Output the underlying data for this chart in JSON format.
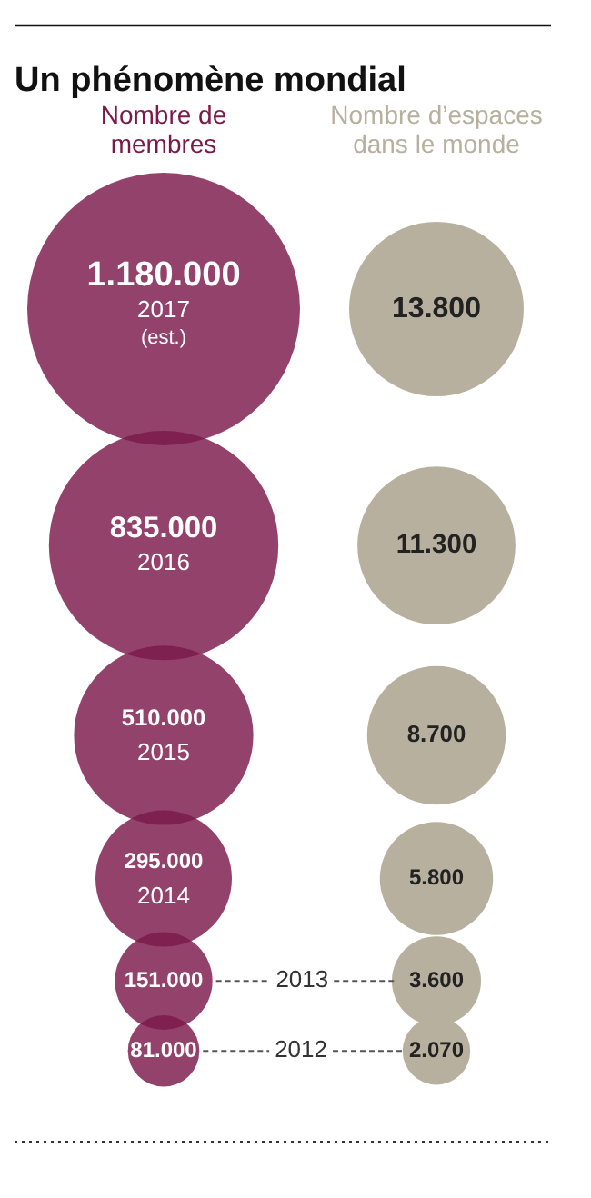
{
  "chart_data": {
    "type": "other",
    "title": "Un phénomène mondial",
    "categories": [
      "2017 (est.)",
      "2016",
      "2015",
      "2014",
      "2013",
      "2012"
    ],
    "series": [
      {
        "name": "Nombre de membres",
        "color": "#7b1a4a",
        "values": [
          1180000,
          835000,
          510000,
          295000,
          151000,
          81000
        ],
        "value_labels": [
          "1.180.000",
          "835.000",
          "510.000",
          "295.000",
          "151.000",
          "81.000"
        ]
      },
      {
        "name": "Nombre d’espaces dans le monde",
        "color": "#b8b09e",
        "values": [
          13800,
          11300,
          8700,
          5800,
          3600,
          2070
        ],
        "value_labels": [
          "13.800",
          "11.300",
          "8.700",
          "5.800",
          "3.600",
          "2.070"
        ]
      }
    ]
  }
}
